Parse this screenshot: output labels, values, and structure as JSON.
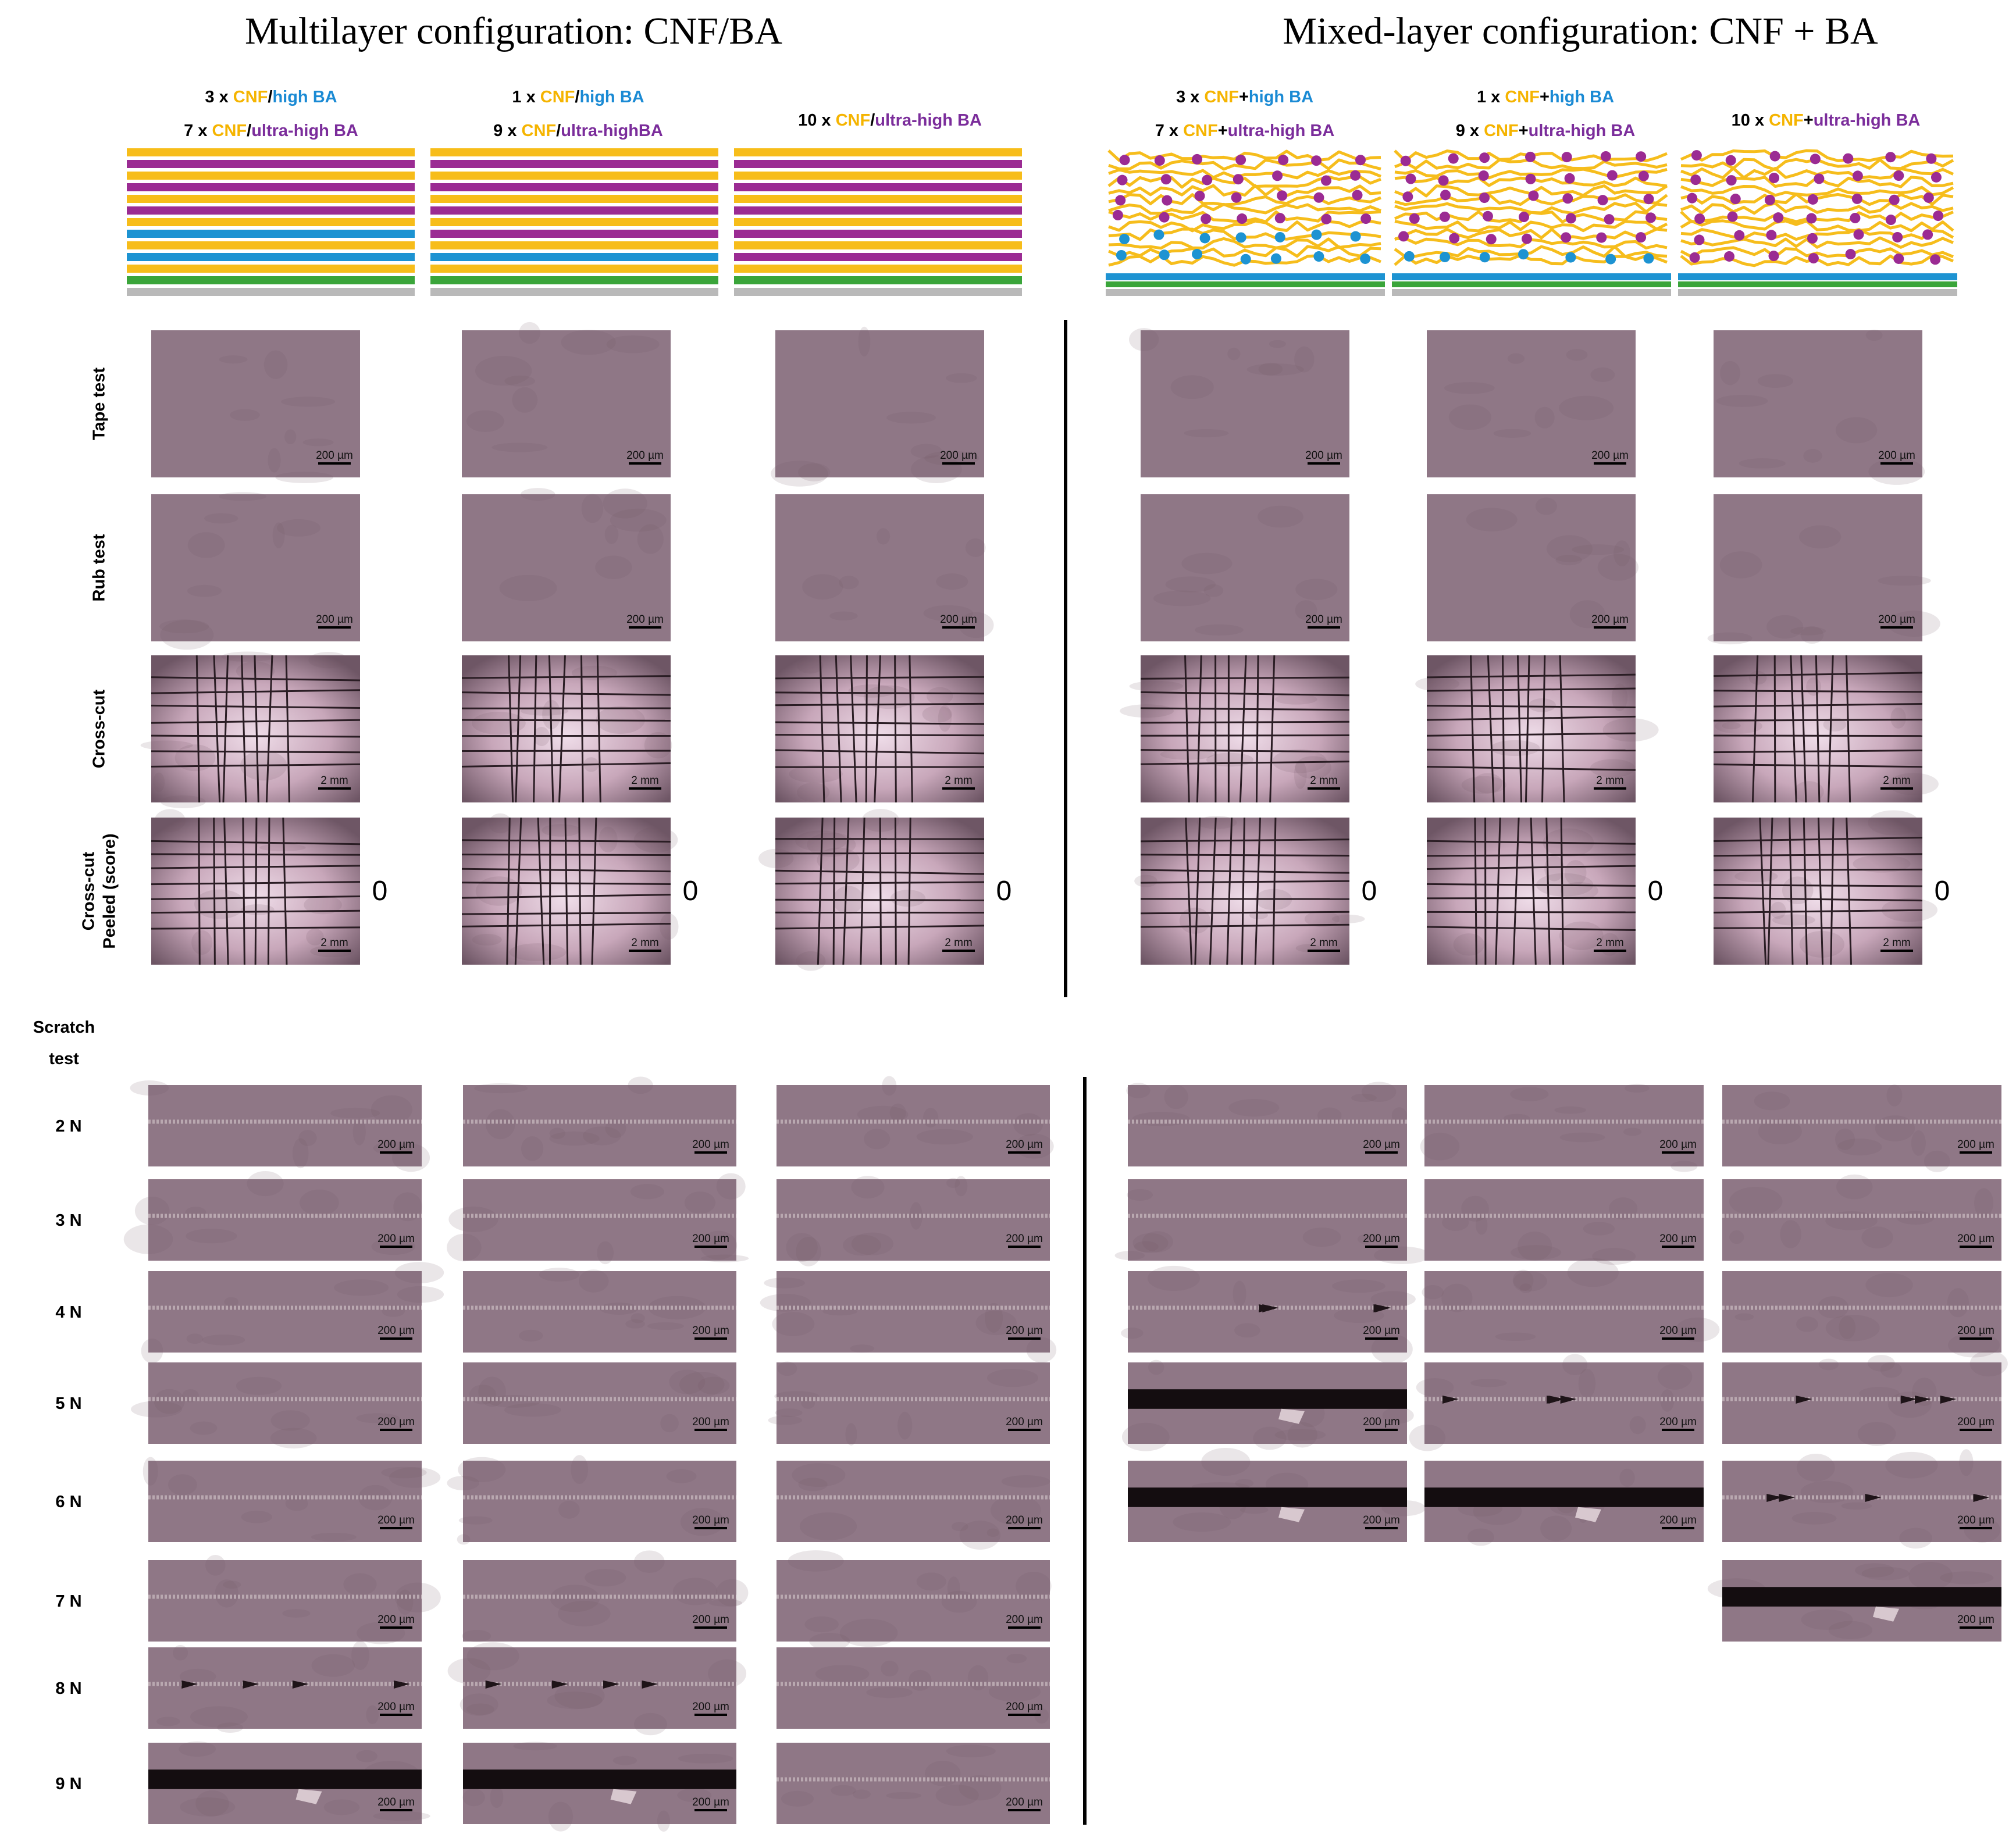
{
  "headings": [
    "Multilayer configuration: CNF/BA",
    "Mixed-layer configuration: CNF + BA"
  ],
  "samples": [
    {
      "lines": [
        [
          {
            "text": "3 x ",
            "color": "#000000"
          },
          {
            "text": "CNF",
            "color": "#f5b400"
          },
          {
            "text": "/",
            "color": "#000000"
          },
          {
            "text": "high BA",
            "color": "#1a8ad4"
          }
        ],
        [
          {
            "text": "7 x ",
            "color": "#000000"
          },
          {
            "text": "CNF",
            "color": "#f5b400"
          },
          {
            "text": "/",
            "color": "#000000"
          },
          {
            "text": "ultra-high BA",
            "color": "#7b2d9b"
          }
        ]
      ]
    },
    {
      "lines": [
        [
          {
            "text": "1 x ",
            "color": "#000000"
          },
          {
            "text": "CNF",
            "color": "#f5b400"
          },
          {
            "text": "/",
            "color": "#000000"
          },
          {
            "text": "high BA",
            "color": "#1a8ad4"
          }
        ],
        [
          {
            "text": "9 x ",
            "color": "#000000"
          },
          {
            "text": "CNF",
            "color": "#f5b400"
          },
          {
            "text": "/",
            "color": "#000000"
          },
          {
            "text": "ultra-highBA",
            "color": "#7b2d9b"
          }
        ]
      ]
    },
    {
      "lines": [
        [
          {
            "text": "10 x ",
            "color": "#000000"
          },
          {
            "text": "CNF",
            "color": "#f5b400"
          },
          {
            "text": "/",
            "color": "#000000"
          },
          {
            "text": "ultra-high BA",
            "color": "#7b2d9b"
          }
        ]
      ]
    },
    {
      "lines": [
        [
          {
            "text": "3 x ",
            "color": "#000000"
          },
          {
            "text": "CNF",
            "color": "#f5b400"
          },
          {
            "text": "+",
            "color": "#000000"
          },
          {
            "text": "high BA",
            "color": "#1a8ad4"
          }
        ],
        [
          {
            "text": "7 x ",
            "color": "#000000"
          },
          {
            "text": "CNF",
            "color": "#f5b400"
          },
          {
            "text": "+",
            "color": "#000000"
          },
          {
            "text": "ultra-high BA",
            "color": "#7b2d9b"
          }
        ]
      ]
    },
    {
      "lines": [
        [
          {
            "text": "1 x ",
            "color": "#000000"
          },
          {
            "text": "CNF",
            "color": "#f5b400"
          },
          {
            "text": "+",
            "color": "#000000"
          },
          {
            "text": "high BA",
            "color": "#1a8ad4"
          }
        ],
        [
          {
            "text": "9 x ",
            "color": "#000000"
          },
          {
            "text": "CNF",
            "color": "#f5b400"
          },
          {
            "text": "+",
            "color": "#000000"
          },
          {
            "text": "ultra-high BA",
            "color": "#7b2d9b"
          }
        ]
      ]
    },
    {
      "lines": [
        [
          {
            "text": "10 x ",
            "color": "#000000"
          },
          {
            "text": "CNF",
            "color": "#f5b400"
          },
          {
            "text": "+",
            "color": "#000000"
          },
          {
            "text": "ultra-high BA",
            "color": "#7b2d9b"
          }
        ]
      ]
    }
  ],
  "tests": [
    {
      "label": [
        "Tape test"
      ],
      "scale_bar": "200 µm",
      "appearance": "plain"
    },
    {
      "label": [
        "Rub test"
      ],
      "scale_bar": "200 µm",
      "appearance": "plain"
    },
    {
      "label": [
        "Cross-cut"
      ],
      "scale_bar": "2 mm",
      "appearance": "grid"
    },
    {
      "label": [
        "Cross-cut",
        "Peeled (score)"
      ],
      "scale_bar": "2 mm",
      "appearance": "grid"
    }
  ],
  "scores": [
    0,
    0,
    0,
    0,
    0,
    0
  ],
  "scratch": {
    "title": [
      "Scratch",
      "test"
    ],
    "scale_bar": "200 µm",
    "rows": [
      {
        "label": "2 N",
        "cells": [
          "scratch",
          "scratch",
          "scratch",
          "scratch",
          "scratch",
          "scratch"
        ]
      },
      {
        "label": "3 N",
        "cells": [
          "scratch",
          "scratch",
          "scratch",
          "scratch",
          "scratch",
          "scratch"
        ]
      },
      {
        "label": "4 N",
        "cells": [
          "scratch",
          "scratch",
          "scratch",
          "chipped",
          "scratch",
          "scratch"
        ]
      },
      {
        "label": "5 N",
        "cells": [
          "scratch",
          "scratch",
          "scratch",
          "delaminated",
          "chipped",
          "chipped"
        ]
      },
      {
        "label": "6 N",
        "cells": [
          "scratch",
          "scratch",
          "scratch",
          "delaminated",
          "delaminated",
          "chipped"
        ]
      },
      {
        "label": "7 N",
        "cells": [
          "scratch",
          "scratch",
          "scratch",
          null,
          null,
          "delaminated"
        ]
      },
      {
        "label": "8 N",
        "cells": [
          "chipped",
          "chipped",
          "scratch",
          null,
          null,
          null
        ]
      },
      {
        "label": "9 N",
        "cells": [
          "delaminated",
          "delaminated",
          "scratch",
          null,
          null,
          null
        ]
      }
    ]
  }
}
